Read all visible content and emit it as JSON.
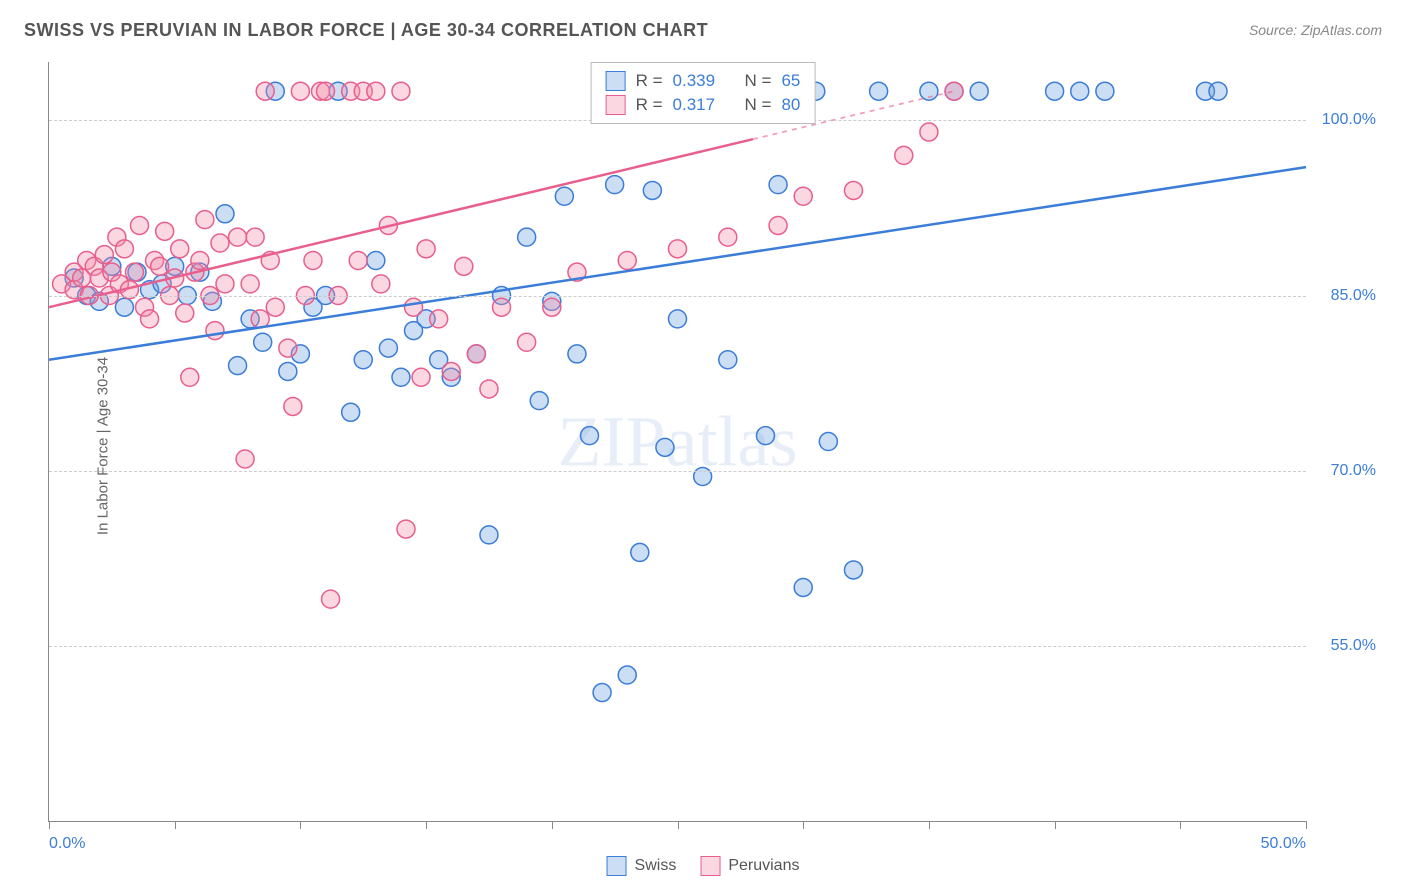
{
  "title": "SWISS VS PERUVIAN IN LABOR FORCE | AGE 30-34 CORRELATION CHART",
  "source": "Source: ZipAtlas.com",
  "ylabel": "In Labor Force | Age 30-34",
  "watermark": "ZIPatlas",
  "chart": {
    "type": "scatter",
    "xlim": [
      0,
      50
    ],
    "ylim": [
      40,
      105
    ],
    "x_tick_labels": [
      "0.0%",
      "50.0%"
    ],
    "x_ticks": [
      0,
      5,
      10,
      15,
      20,
      25,
      30,
      35,
      40,
      45,
      50
    ],
    "y_gridlines": [
      55,
      70,
      85,
      100
    ],
    "y_tick_labels": [
      "55.0%",
      "70.0%",
      "85.0%",
      "100.0%"
    ],
    "background_color": "#ffffff",
    "grid_color": "#cccccc",
    "label_color": "#3b7dd8",
    "title_color": "#555555",
    "marker_radius": 9,
    "marker_fill_opacity": 0.35,
    "marker_stroke_width": 1.5,
    "trend_line_width": 2.5
  },
  "series": [
    {
      "name": "Swiss",
      "color": "#3b7dd8",
      "fill": "rgba(110,160,220,0.35)",
      "R": "0.339",
      "N": "65",
      "trend": {
        "x1": 0,
        "y1": 79.5,
        "x2": 50,
        "y2": 96
      },
      "trend_dash_from_x": 50,
      "points": [
        [
          1,
          86.5
        ],
        [
          1.5,
          85
        ],
        [
          2,
          84.5
        ],
        [
          2.5,
          87.5
        ],
        [
          3,
          84
        ],
        [
          3.5,
          87
        ],
        [
          4,
          85.5
        ],
        [
          4.5,
          86
        ],
        [
          5,
          87.5
        ],
        [
          5.5,
          85
        ],
        [
          6,
          87
        ],
        [
          6.5,
          84.5
        ],
        [
          7,
          92
        ],
        [
          7.5,
          79
        ],
        [
          8,
          83
        ],
        [
          8.5,
          81
        ],
        [
          9,
          102.5
        ],
        [
          9.5,
          78.5
        ],
        [
          10,
          80
        ],
        [
          10.5,
          84
        ],
        [
          11,
          85
        ],
        [
          11.5,
          102.5
        ],
        [
          12,
          75
        ],
        [
          12.5,
          79.5
        ],
        [
          13,
          88
        ],
        [
          13.5,
          80.5
        ],
        [
          14,
          78
        ],
        [
          14.5,
          82
        ],
        [
          15,
          83
        ],
        [
          15.5,
          79.5
        ],
        [
          16,
          78
        ],
        [
          17,
          80
        ],
        [
          17.5,
          64.5
        ],
        [
          18,
          85
        ],
        [
          19,
          90
        ],
        [
          19.5,
          76
        ],
        [
          20,
          84.5
        ],
        [
          20.5,
          93.5
        ],
        [
          21,
          80
        ],
        [
          21.5,
          73
        ],
        [
          22.5,
          94.5
        ],
        [
          22,
          51
        ],
        [
          23,
          52.5
        ],
        [
          23.5,
          63
        ],
        [
          24,
          94
        ],
        [
          24.5,
          72
        ],
        [
          25,
          83
        ],
        [
          26,
          69.5
        ],
        [
          27,
          79.5
        ],
        [
          28,
          102.5
        ],
        [
          28.5,
          73
        ],
        [
          29,
          94.5
        ],
        [
          30,
          60
        ],
        [
          30.5,
          102.5
        ],
        [
          31,
          72.5
        ],
        [
          32,
          61.5
        ],
        [
          33,
          102.5
        ],
        [
          35,
          102.5
        ],
        [
          36,
          102.5
        ],
        [
          37,
          102.5
        ],
        [
          40,
          102.5
        ],
        [
          41,
          102.5
        ],
        [
          42,
          102.5
        ],
        [
          46,
          102.5
        ],
        [
          46.5,
          102.5
        ]
      ]
    },
    {
      "name": "Peruvians",
      "color": "#e85f8e",
      "fill": "rgba(240,140,170,0.35)",
      "R": "0.317",
      "N": "80",
      "trend": {
        "x1": 0,
        "y1": 84,
        "x2": 36,
        "y2": 102.5
      },
      "trend_dash_from_x": 28,
      "points": [
        [
          0.5,
          86
        ],
        [
          1,
          87
        ],
        [
          1,
          85.5
        ],
        [
          1.3,
          86.5
        ],
        [
          1.5,
          88
        ],
        [
          1.6,
          85
        ],
        [
          1.8,
          87.5
        ],
        [
          2,
          86.5
        ],
        [
          2.2,
          88.5
        ],
        [
          2.4,
          85
        ],
        [
          2.5,
          87
        ],
        [
          2.7,
          90
        ],
        [
          2.8,
          86
        ],
        [
          3,
          89
        ],
        [
          3.2,
          85.5
        ],
        [
          3.4,
          87
        ],
        [
          3.6,
          91
        ],
        [
          3.8,
          84
        ],
        [
          4,
          83
        ],
        [
          4.2,
          88
        ],
        [
          4.4,
          87.5
        ],
        [
          4.6,
          90.5
        ],
        [
          4.8,
          85
        ],
        [
          5,
          86.5
        ],
        [
          5.2,
          89
        ],
        [
          5.4,
          83.5
        ],
        [
          5.6,
          78
        ],
        [
          5.8,
          87
        ],
        [
          6,
          88
        ],
        [
          6.2,
          91.5
        ],
        [
          6.4,
          85
        ],
        [
          6.6,
          82
        ],
        [
          6.8,
          89.5
        ],
        [
          7,
          86
        ],
        [
          7.5,
          90
        ],
        [
          7.8,
          71
        ],
        [
          8,
          86
        ],
        [
          8.2,
          90
        ],
        [
          8.4,
          83
        ],
        [
          8.6,
          102.5
        ],
        [
          8.8,
          88
        ],
        [
          9,
          84
        ],
        [
          9.5,
          80.5
        ],
        [
          9.7,
          75.5
        ],
        [
          10,
          102.5
        ],
        [
          10.2,
          85
        ],
        [
          10.5,
          88
        ],
        [
          10.8,
          102.5
        ],
        [
          11,
          102.5
        ],
        [
          11.2,
          59
        ],
        [
          11.5,
          85
        ],
        [
          12,
          102.5
        ],
        [
          12.3,
          88
        ],
        [
          12.5,
          102.5
        ],
        [
          13,
          102.5
        ],
        [
          13.2,
          86
        ],
        [
          13.5,
          91
        ],
        [
          14,
          102.5
        ],
        [
          14.2,
          65
        ],
        [
          14.5,
          84
        ],
        [
          14.8,
          78
        ],
        [
          15,
          89
        ],
        [
          15.5,
          83
        ],
        [
          16,
          78.5
        ],
        [
          16.5,
          87.5
        ],
        [
          17,
          80
        ],
        [
          17.5,
          77
        ],
        [
          18,
          84
        ],
        [
          19,
          81
        ],
        [
          20,
          84
        ],
        [
          21,
          87
        ],
        [
          23,
          88
        ],
        [
          25,
          89
        ],
        [
          27,
          90
        ],
        [
          29,
          91
        ],
        [
          30,
          93.5
        ],
        [
          32,
          94
        ],
        [
          34,
          97
        ],
        [
          35,
          99
        ],
        [
          36,
          102.5
        ]
      ]
    }
  ],
  "legend": {
    "items": [
      "Swiss",
      "Peruvians"
    ]
  },
  "stats_box": {
    "r_label": "R =",
    "n_label": "N ="
  }
}
